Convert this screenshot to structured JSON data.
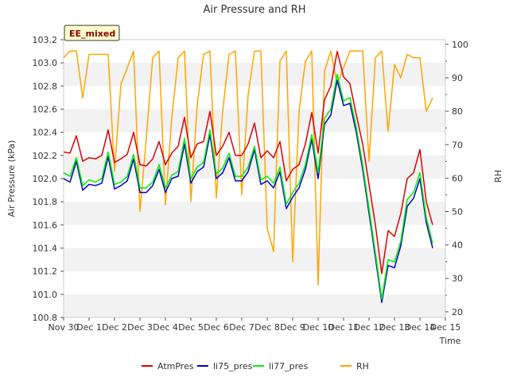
{
  "chart_data": {
    "type": "line",
    "title": "Air Pressure and RH",
    "xlabel": "Time",
    "ylabel_left": "Air Pressure (kPa)",
    "ylabel_right": "RH",
    "badge": "EE_mixed",
    "x_ticks": [
      "Nov 30",
      "Dec 1",
      "Dec 2",
      "Dec 3",
      "Dec 4",
      "Dec 5",
      "Dec 6",
      "Dec 7",
      "Dec 8",
      "Dec 9",
      "Dec 10",
      "Dec 11",
      "Dec 12",
      "Dec 13",
      "Dec 14",
      "Dec 15"
    ],
    "xlim_days": [
      0,
      15
    ],
    "ylim_left": [
      100.8,
      103.2
    ],
    "yticks_left": [
      "100.8",
      "101.0",
      "101.2",
      "101.4",
      "101.6",
      "101.8",
      "102.0",
      "102.2",
      "102.4",
      "102.6",
      "102.8",
      "103.0",
      "103.2"
    ],
    "ylim_right": [
      18.3,
      101.4
    ],
    "yticks_right": [
      "20",
      "30",
      "40",
      "50",
      "60",
      "70",
      "80",
      "90",
      "100"
    ],
    "grid": "horizontal bands",
    "legend_position": "bottom-center",
    "colors": {
      "AtmPres": "#dd0000",
      "li75_pres": "#0000cc",
      "li77_pres": "#00ee00",
      "RH": "#ffa500",
      "band": "#f2f2f2"
    },
    "x": [
      0.0,
      0.25,
      0.5,
      0.75,
      1.0,
      1.25,
      1.5,
      1.75,
      2.0,
      2.25,
      2.5,
      2.75,
      3.0,
      3.25,
      3.5,
      3.75,
      4.0,
      4.25,
      4.5,
      4.75,
      5.0,
      5.25,
      5.5,
      5.75,
      6.0,
      6.25,
      6.5,
      6.75,
      7.0,
      7.25,
      7.5,
      7.75,
      8.0,
      8.25,
      8.5,
      8.75,
      9.0,
      9.25,
      9.5,
      9.75,
      10.0,
      10.25,
      10.5,
      10.75,
      11.0,
      11.25,
      11.5,
      11.75,
      12.0,
      12.25,
      12.5,
      12.75,
      13.0,
      13.25,
      13.5,
      13.75,
      14.0,
      14.25,
      14.5
    ],
    "series": [
      {
        "name": "AtmPres",
        "axis": "left",
        "values": [
          102.23,
          102.22,
          102.37,
          102.15,
          102.18,
          102.17,
          102.2,
          102.42,
          102.14,
          102.17,
          102.21,
          102.4,
          102.12,
          102.11,
          102.17,
          102.32,
          102.12,
          102.22,
          102.28,
          102.53,
          102.18,
          102.3,
          102.32,
          102.58,
          102.2,
          102.28,
          102.4,
          102.2,
          102.2,
          102.3,
          102.48,
          102.18,
          102.24,
          102.18,
          102.32,
          101.98,
          102.08,
          102.12,
          102.3,
          102.57,
          102.22,
          102.68,
          102.8,
          103.1,
          102.88,
          102.82,
          102.55,
          102.3,
          101.95,
          101.6,
          101.18,
          101.55,
          101.5,
          101.7,
          102.0,
          102.05,
          102.25,
          101.8,
          101.6
        ]
      },
      {
        "name": "li75_pres",
        "axis": "left",
        "values": [
          102.0,
          101.97,
          102.15,
          101.9,
          101.95,
          101.94,
          101.96,
          102.19,
          101.91,
          101.94,
          101.98,
          102.17,
          101.88,
          101.88,
          101.94,
          102.08,
          101.88,
          102.0,
          102.02,
          102.3,
          101.96,
          102.06,
          102.1,
          102.38,
          102.0,
          102.05,
          102.18,
          101.98,
          101.98,
          102.06,
          102.25,
          101.95,
          101.98,
          101.92,
          102.06,
          101.74,
          101.84,
          101.92,
          102.08,
          102.34,
          102.0,
          102.47,
          102.55,
          102.85,
          102.63,
          102.65,
          102.4,
          102.08,
          101.7,
          101.32,
          100.93,
          101.25,
          101.23,
          101.42,
          101.76,
          101.83,
          102.0,
          101.62,
          101.4
        ]
      },
      {
        "name": "li77_pres",
        "axis": "left",
        "values": [
          102.05,
          102.02,
          102.18,
          101.94,
          101.99,
          101.97,
          102.0,
          102.23,
          101.95,
          101.97,
          102.02,
          102.21,
          101.92,
          101.92,
          101.97,
          102.12,
          101.92,
          102.03,
          102.06,
          102.35,
          102.0,
          102.1,
          102.14,
          102.42,
          102.04,
          102.09,
          102.22,
          102.02,
          102.02,
          102.1,
          102.28,
          101.99,
          102.02,
          101.96,
          102.1,
          101.78,
          101.88,
          101.96,
          102.12,
          102.38,
          102.05,
          102.52,
          102.6,
          102.9,
          102.67,
          102.7,
          102.44,
          102.12,
          101.74,
          101.36,
          100.96,
          101.3,
          101.28,
          101.46,
          101.82,
          101.88,
          102.05,
          101.66,
          101.44
        ]
      },
      {
        "name": "RH",
        "axis": "right",
        "values": [
          96,
          98,
          98,
          84,
          97,
          97,
          97,
          97,
          62,
          88,
          93,
          98,
          50,
          72,
          96,
          98,
          52,
          78,
          96,
          98,
          53,
          82,
          97,
          98,
          54,
          80,
          97,
          98,
          55,
          85,
          98,
          98,
          45,
          38,
          95,
          98,
          35,
          80,
          95,
          98,
          28,
          92,
          98,
          88,
          93,
          98,
          98,
          98,
          65,
          96,
          98,
          74,
          94,
          90,
          97,
          96,
          96,
          80,
          84
        ]
      }
    ]
  }
}
